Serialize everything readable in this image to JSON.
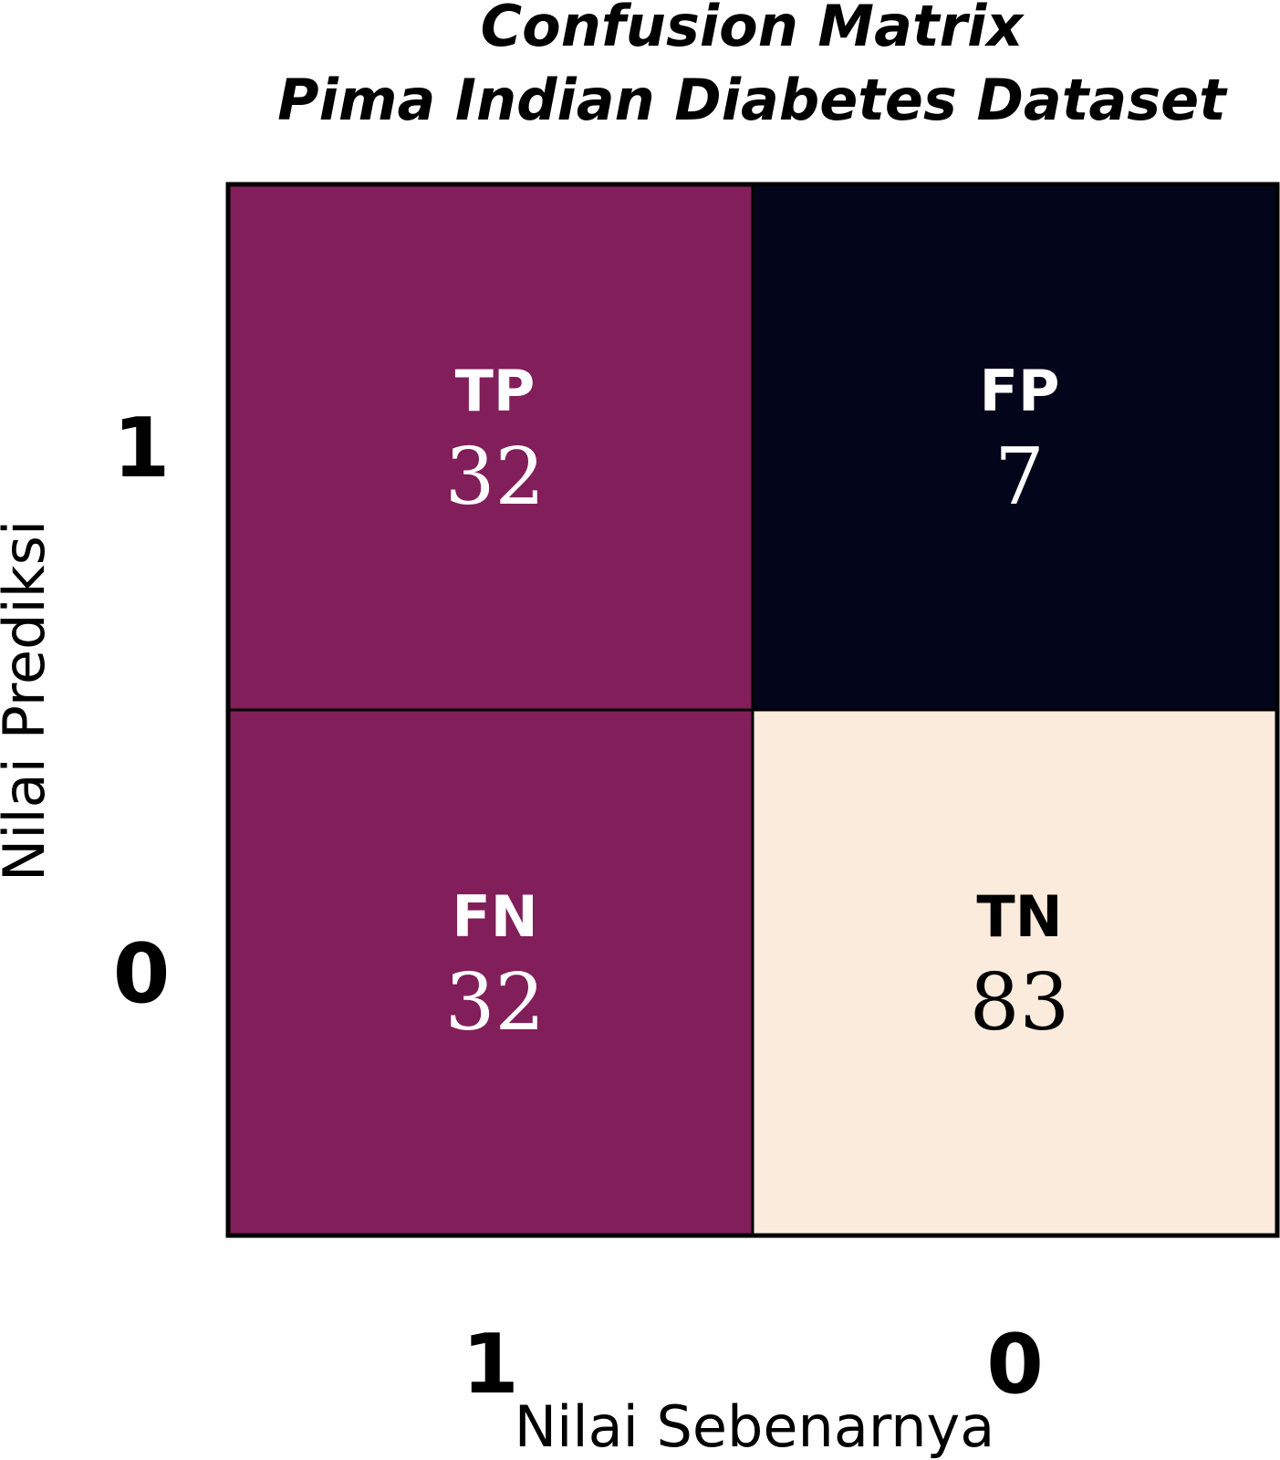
{
  "chart_data": {
    "type": "heatmap",
    "title": "Confusion Matrix",
    "subtitle": "Pima Indian Diabetes Dataset",
    "xlabel": "Nilai Sebenarnya",
    "ylabel": "Nilai Prediksi",
    "x_categories": [
      "1",
      "0"
    ],
    "y_categories": [
      "1",
      "0"
    ],
    "cells": [
      {
        "row": 0,
        "col": 0,
        "label": "TP",
        "value": 32,
        "color": "#821e59",
        "text_color": "#ffffff"
      },
      {
        "row": 0,
        "col": 1,
        "label": "FP",
        "value": 7,
        "color": "#03061a",
        "text_color": "#ffffff"
      },
      {
        "row": 1,
        "col": 0,
        "label": "FN",
        "value": 32,
        "color": "#821e59",
        "text_color": "#ffffff"
      },
      {
        "row": 1,
        "col": 1,
        "label": "TN",
        "value": 83,
        "color": "#faebdd",
        "text_color": "#000000"
      }
    ],
    "grid_color": "#000000"
  }
}
